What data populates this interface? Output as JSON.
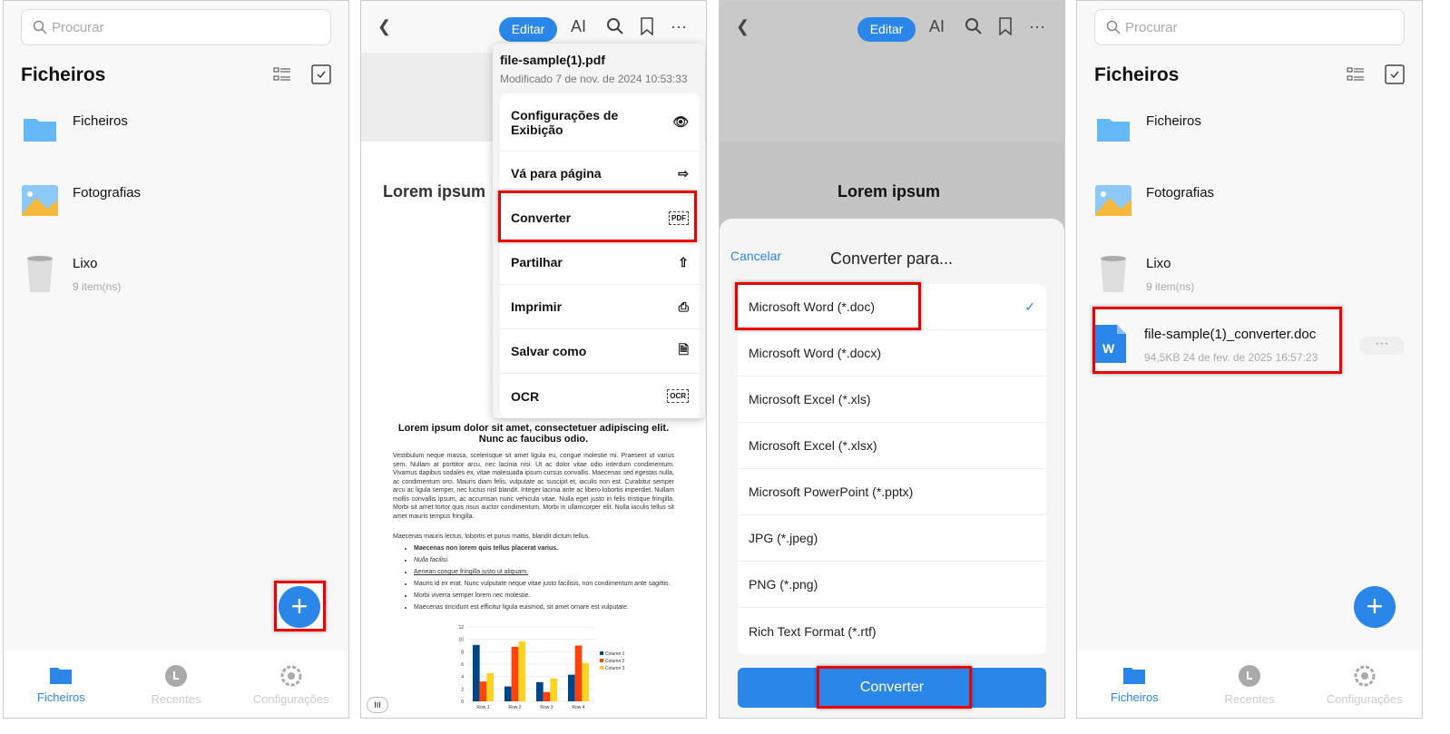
{
  "files_screen": {
    "search_placeholder": "Procurar",
    "title": "Ficheiros",
    "items": [
      {
        "name": "Ficheiros",
        "icon": "folder-icon"
      },
      {
        "name": "Fotografias",
        "icon": "photos-icon"
      },
      {
        "name": "Lixo",
        "sub": "9 item(ns)",
        "icon": "trash-icon"
      }
    ],
    "new_file": {
      "name": "file-sample(1)_converter.doc",
      "sub": "94,5KB 24 de fev. de 2025 16:57:23",
      "icon": "word-doc-icon"
    },
    "fab": "+",
    "nav": [
      "Ficheiros",
      "Recentes",
      "Configurações"
    ]
  },
  "viewer": {
    "edit": "Editar",
    "ai": "AI",
    "menu": {
      "filename": "file-sample(1).pdf",
      "modified": "Modificado 7 de nov. de 2024 10:53:33",
      "items": [
        "Configurações de Exibição",
        "Vá para página",
        "Converter",
        "Partilhar",
        "Imprimir",
        "Salvar como",
        "OCR"
      ]
    },
    "doc": {
      "title": "Lorem ipsum",
      "heading": "Lorem ipsum dolor sit amet, consectetuer adipiscing elit. Nunc ac faucibus odio.",
      "para1": "Vestibulum neque massa, scelerisque sit amet ligula eu, congue molestie mi. Praesent ut varius sem. Nullam at porttitor arcu, nec lacinia nisi. Ut ac dolor vitae odio interdum condimentum. Vivamus dapibus sodales ex, vitae malesuada ipsum cursus convallis. Maecenas sed egestas nulla, ac condimentum orci. Mauris diam felis, vulputate ac suscipit et, iaculis non est. Curabitur semper arcu ac ligula semper, nec luctus nisl blandit. Integer lacinia ante ac libero lobortis imperdiet. Nullam mollis convallis ipsum, ac accumsan nunc vehicula vitae. Nulla eget justo in felis tristique fringilla. Morbi sit amet tortor quis risus auctor condimentum. Morbi in ullamcorper elit. Nulla iaculis tellus sit amet mauris tempus fringilla.",
      "para2": "Maecenas mauris lectus, lobortis et purus mattis, blandit dictum tellus.",
      "bullets": [
        "Maecenas non lorem quis tellus placerat varius.",
        "Nulla facilisi.",
        "Aenean congue fringilla justo ut aliquam.",
        "Mauris id ex erat. Nunc vulputate neque vitae justo facilisis, non condimentum ante sagittis.",
        "Morbi viverra semper lorem nec molestie.",
        "Maecenas tincidunt est efficitur ligula euismod, sit amet ornare est vulputate."
      ],
      "page_indicator": "III"
    }
  },
  "convert_sheet": {
    "cancel": "Cancelar",
    "title": "Converter para...",
    "options": [
      "Microsoft Word (*.doc)",
      "Microsoft Word (*.docx)",
      "Microsoft Excel (*.xls)",
      "Microsoft Excel (*.xlsx)",
      "Microsoft PowerPoint (*.pptx)",
      "JPG (*.jpeg)",
      "PNG (*.png)",
      "Rich Text Format (*.rtf)"
    ],
    "selected": 0,
    "check": "✓",
    "button": "Converter",
    "bg_title": "Lorem ipsum"
  },
  "chart_data": {
    "type": "bar",
    "categories": [
      "Row 1",
      "Row 2",
      "Row 3",
      "Row 4"
    ],
    "series": [
      {
        "name": "Column 1",
        "color": "#004586",
        "values": [
          9.1,
          2.4,
          3.1,
          4.3
        ]
      },
      {
        "name": "Column 2",
        "color": "#ff420e",
        "values": [
          3.2,
          8.8,
          1.5,
          9.0
        ]
      },
      {
        "name": "Column 3",
        "color": "#ffd320",
        "values": [
          4.54,
          9.65,
          3.7,
          6.2
        ]
      }
    ],
    "ylim": [
      0,
      12
    ],
    "yticks": [
      0,
      2,
      4,
      6,
      8,
      10,
      12
    ],
    "grid": true,
    "legend": "right"
  },
  "colors": {
    "accent": "#2a86e8",
    "highlight": "#e00000"
  }
}
